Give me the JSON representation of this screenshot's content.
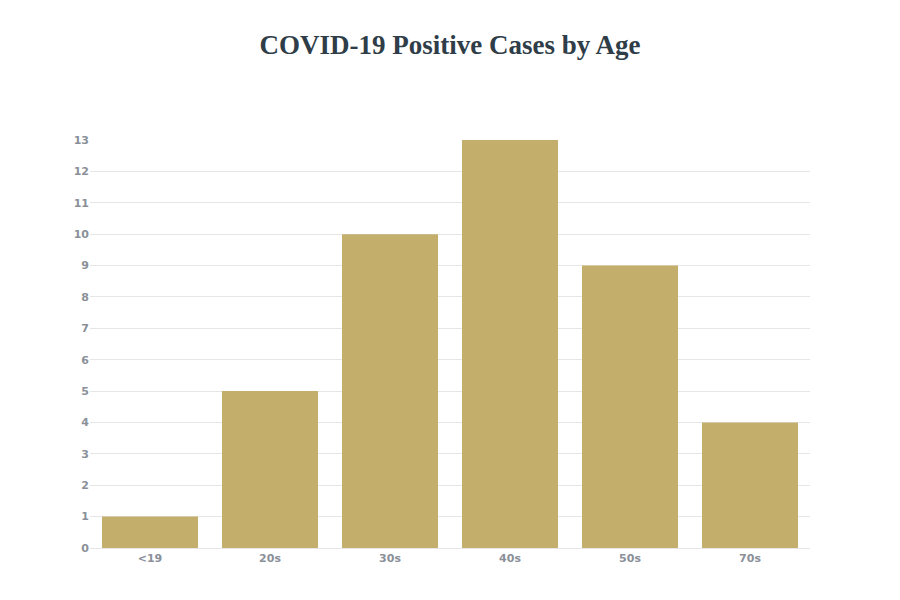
{
  "chart_data": {
    "type": "bar",
    "title": "COVID-19 Positive Cases by Age",
    "categories": [
      "<19",
      "20s",
      "30s",
      "40s",
      "50s",
      "70s"
    ],
    "values": [
      1,
      5,
      10,
      13,
      9,
      4
    ],
    "color": "#c4ae6c",
    "ylim": [
      0,
      13
    ],
    "yticks": [
      0,
      1,
      2,
      3,
      4,
      5,
      6,
      7,
      8,
      9,
      10,
      11,
      12,
      13
    ],
    "grid": true
  }
}
